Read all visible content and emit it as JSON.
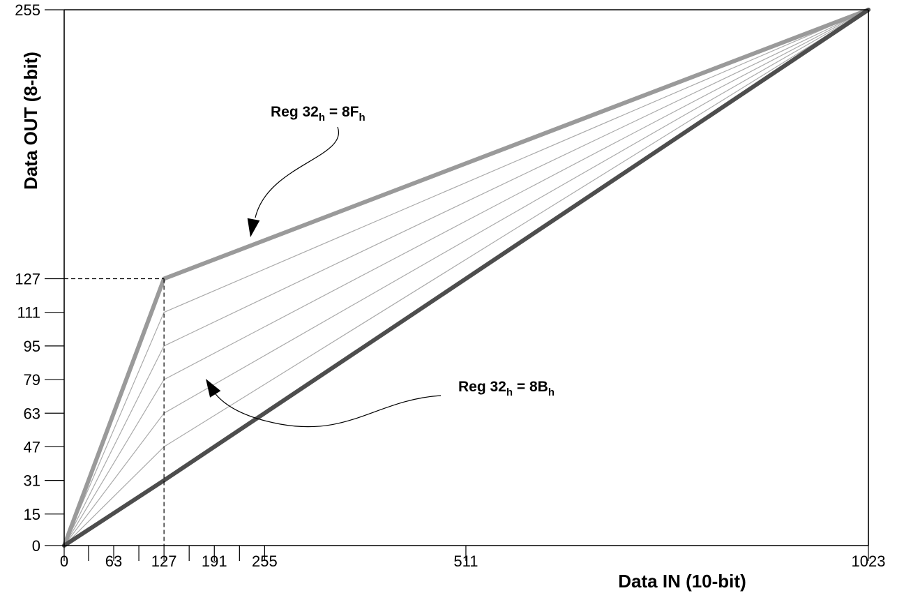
{
  "chart_data": {
    "type": "line",
    "xlabel": "Data IN (10-bit)",
    "ylabel": "Data OUT (8-bit)",
    "xlim": [
      0,
      1023
    ],
    "ylim": [
      0,
      255
    ],
    "x_tick_labels": [
      "0",
      "63",
      "127",
      "191",
      "255",
      "511",
      "1023"
    ],
    "x_minor_ticks": [
      0,
      31,
      63,
      95,
      127,
      159,
      191,
      223,
      255,
      511,
      1023
    ],
    "y_tick_labels": [
      "0",
      "15",
      "31",
      "47",
      "63",
      "79",
      "95",
      "111",
      "127",
      "255"
    ],
    "knee_x": 127,
    "knee_y": 127,
    "curves": [
      {
        "points": [
          [
            0,
            0
          ],
          [
            127,
            127
          ],
          [
            1023,
            255
          ]
        ],
        "emphasis": "upper"
      },
      {
        "points": [
          [
            0,
            0
          ],
          [
            127,
            111
          ],
          [
            1023,
            255
          ]
        ]
      },
      {
        "points": [
          [
            0,
            0
          ],
          [
            127,
            95
          ],
          [
            1023,
            255
          ]
        ]
      },
      {
        "points": [
          [
            0,
            0
          ],
          [
            127,
            79
          ],
          [
            1023,
            255
          ]
        ]
      },
      {
        "points": [
          [
            0,
            0
          ],
          [
            127,
            63
          ],
          [
            1023,
            255
          ]
        ]
      },
      {
        "points": [
          [
            0,
            0
          ],
          [
            127,
            47
          ],
          [
            1023,
            255
          ]
        ]
      },
      {
        "points": [
          [
            0,
            0
          ],
          [
            127,
            31
          ],
          [
            1023,
            255
          ]
        ],
        "emphasis": "lower"
      }
    ],
    "annotations": [
      {
        "label": "Reg 32",
        "sub": "h",
        "mid": " = 8F",
        "sub2": "h",
        "target": [
          239,
          132
        ]
      },
      {
        "label": "Reg 32",
        "sub": "h",
        "mid": " = 8B",
        "sub2": "h",
        "target": [
          179,
          79
        ]
      }
    ],
    "colors": {
      "upper": "#9a9a9a",
      "lower": "#4d4d4d",
      "middle": "#aaaaaa",
      "axis": "#000000"
    },
    "grid": false
  }
}
